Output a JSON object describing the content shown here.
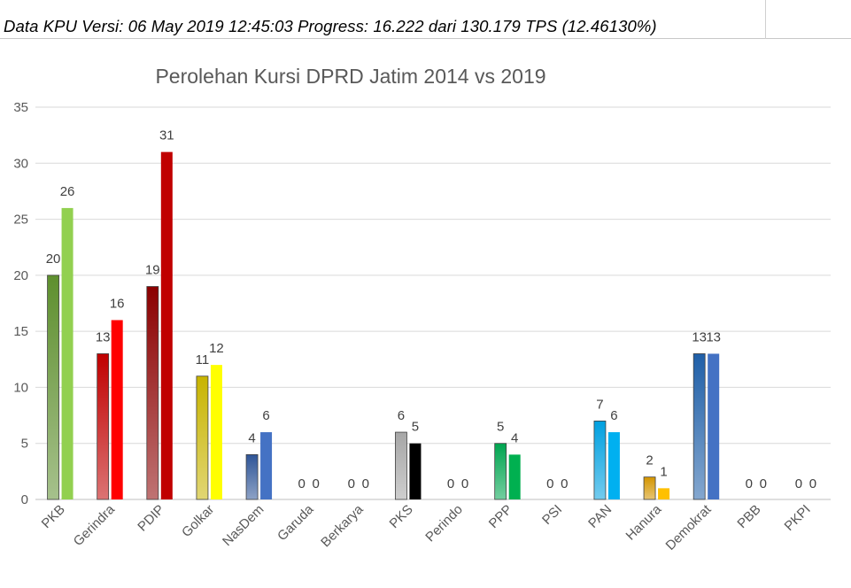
{
  "header": {
    "version_text": "Data KPU Versi: 06 May 2019 12:45:03 Progress: 16.222 dari 130.179 TPS (12.46130%)"
  },
  "chart_data": {
    "type": "bar",
    "title": "Perolehan Kursi DPRD Jatim 2014 vs 2019",
    "xlabel": "",
    "ylabel": "",
    "ylim": [
      0,
      35
    ],
    "yticks": [
      0,
      5,
      10,
      15,
      20,
      25,
      30,
      35
    ],
    "grid": true,
    "legend": "none",
    "categories": [
      "PKB",
      "Gerindra",
      "PDIP",
      "Golkar",
      "NasDem",
      "Garuda",
      "Berkarya",
      "PKS",
      "Perindo",
      "PPP",
      "PSI",
      "PAN",
      "Hanura",
      "Demokrat",
      "PBB",
      "PKPI"
    ],
    "series": [
      {
        "values": [
          20,
          13,
          19,
          11,
          4,
          0,
          0,
          6,
          0,
          5,
          0,
          7,
          2,
          13,
          0,
          0
        ]
      },
      {
        "values": [
          26,
          16,
          31,
          12,
          6,
          0,
          0,
          5,
          0,
          4,
          0,
          6,
          1,
          13,
          0,
          0
        ]
      }
    ],
    "colors_2014": [
      "#5e8f2e",
      "#c00000",
      "#8b0000",
      "#c8b400",
      "#2f5597",
      "#888888",
      "#888888",
      "#a6a6a6",
      "#888888",
      "#00a550",
      "#888888",
      "#00a0e0",
      "#d49500",
      "#1f5fa8",
      "#888888",
      "#888888"
    ],
    "colors_2019": [
      "#92d050",
      "#ff0000",
      "#c00000",
      "#ffff00",
      "#4472c4",
      "#888888",
      "#888888",
      "#000000",
      "#888888",
      "#00b050",
      "#888888",
      "#00b0f0",
      "#ffc000",
      "#4472c4",
      "#888888",
      "#888888"
    ]
  }
}
